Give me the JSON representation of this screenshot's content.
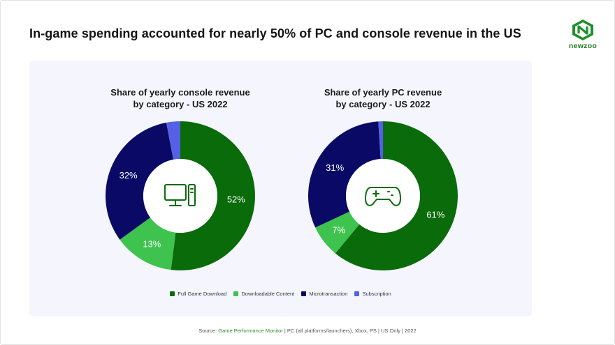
{
  "title": "In-game spending accounted for nearly 50% of PC and console revenue in the US",
  "logo": {
    "text": "newzoo",
    "icon": "newzoo-logo-icon"
  },
  "colors": {
    "full_game_download": "#0a6b0a",
    "downloadable_content": "#3ec34e",
    "microtransaction": "#0a0a66",
    "subscription": "#5560e6"
  },
  "chart_data": [
    {
      "type": "pie",
      "title_line1": "Share of yearly console revenue",
      "title_line2": "by category - US 2022",
      "center_icon": "desktop-computer-icon",
      "categories": [
        "Full Game Download",
        "Downloadable Content",
        "Microtransaction",
        "Subscription"
      ],
      "values": [
        52,
        13,
        32,
        3
      ],
      "labels": [
        "52%",
        "13%",
        "32%",
        ""
      ]
    },
    {
      "type": "pie",
      "title_line1": "Share of yearly PC revenue",
      "title_line2": "by category - US 2022",
      "center_icon": "gamepad-icon",
      "categories": [
        "Full Game Download",
        "Downloadable Content",
        "Microtransaction",
        "Subscription"
      ],
      "values": [
        61,
        7,
        31,
        1
      ],
      "labels": [
        "61%",
        "7%",
        "31%",
        ""
      ]
    }
  ],
  "legend": [
    {
      "label": "Full Game Download",
      "color": "#0a6b0a"
    },
    {
      "label": "Downloadable Content",
      "color": "#3ec34e"
    },
    {
      "label": "Microtransaction",
      "color": "#0a0a66"
    },
    {
      "label": "Subscription",
      "color": "#5560e6"
    }
  ],
  "source": {
    "prefix": "Source: ",
    "link": "Game Performance Monitor",
    "rest": " | PC (all platforms/launchers), Xbox, PS | US Only | 2022"
  }
}
